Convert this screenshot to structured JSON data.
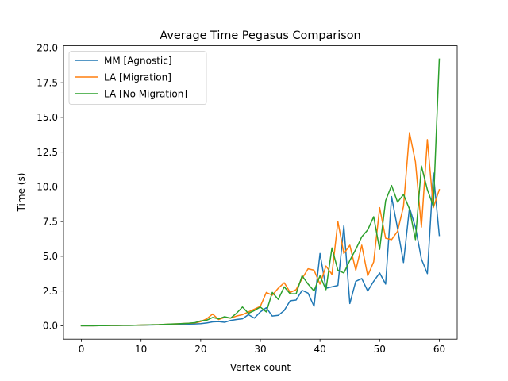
{
  "chart_data": {
    "type": "line",
    "title": "Average Time Pegasus Comparison",
    "xlabel": "Vertex count",
    "ylabel": "Time (s)",
    "xlim": [
      -3,
      63
    ],
    "ylim": [
      -0.96,
      20.16
    ],
    "xticks": [
      0,
      10,
      20,
      30,
      40,
      50,
      60
    ],
    "yticks": [
      0.0,
      2.5,
      5.0,
      7.5,
      10.0,
      12.5,
      15.0,
      17.5,
      20.0
    ],
    "xtick_labels": [
      "0",
      "10",
      "20",
      "30",
      "40",
      "50",
      "60"
    ],
    "ytick_labels": [
      "0.0",
      "2.5",
      "5.0",
      "7.5",
      "10.0",
      "12.5",
      "15.0",
      "17.5",
      "20.0"
    ],
    "grid": false,
    "legend_position": "upper-left",
    "x": [
      0,
      1,
      2,
      3,
      4,
      5,
      6,
      7,
      8,
      9,
      10,
      11,
      12,
      13,
      14,
      15,
      16,
      17,
      18,
      19,
      20,
      21,
      22,
      23,
      24,
      25,
      26,
      27,
      28,
      29,
      30,
      31,
      32,
      33,
      34,
      35,
      36,
      37,
      38,
      39,
      40,
      41,
      42,
      43,
      44,
      45,
      46,
      47,
      48,
      49,
      50,
      51,
      52,
      53,
      54,
      55,
      56,
      57,
      58,
      59,
      60
    ],
    "series": [
      {
        "name": "MM [Agnostic]",
        "color": "#1f77b4",
        "values": [
          0.0,
          0.0,
          0.0,
          0.01,
          0.01,
          0.02,
          0.02,
          0.03,
          0.03,
          0.04,
          0.04,
          0.05,
          0.06,
          0.07,
          0.08,
          0.09,
          0.1,
          0.11,
          0.12,
          0.13,
          0.15,
          0.2,
          0.28,
          0.3,
          0.25,
          0.38,
          0.45,
          0.5,
          0.8,
          0.55,
          1.0,
          1.3,
          0.7,
          0.75,
          1.1,
          1.8,
          1.85,
          2.55,
          2.35,
          1.4,
          5.2,
          2.7,
          2.8,
          2.9,
          7.2,
          1.6,
          3.2,
          3.4,
          2.5,
          3.2,
          3.8,
          3.0,
          9.3,
          7.0,
          4.55,
          8.5,
          7.1,
          4.8,
          3.75,
          11.0,
          6.5
        ]
      },
      {
        "name": "LA [Migration]",
        "color": "#ff7f0e",
        "values": [
          0.0,
          0.0,
          0.0,
          0.01,
          0.01,
          0.02,
          0.02,
          0.03,
          0.03,
          0.04,
          0.05,
          0.06,
          0.07,
          0.08,
          0.1,
          0.12,
          0.14,
          0.16,
          0.18,
          0.2,
          0.3,
          0.5,
          0.85,
          0.45,
          0.6,
          0.55,
          0.7,
          0.8,
          1.0,
          1.2,
          1.4,
          2.4,
          2.2,
          2.7,
          3.1,
          2.4,
          2.6,
          3.4,
          4.1,
          4.0,
          3.0,
          4.3,
          3.7,
          7.5,
          5.2,
          5.8,
          4.0,
          5.8,
          3.6,
          4.6,
          8.5,
          6.3,
          6.2,
          6.8,
          8.6,
          13.9,
          11.8,
          7.1,
          13.4,
          8.5,
          9.8
        ]
      },
      {
        "name": "LA [No Migration]",
        "color": "#2ca02c",
        "values": [
          0.0,
          0.0,
          0.0,
          0.01,
          0.01,
          0.02,
          0.02,
          0.03,
          0.03,
          0.04,
          0.05,
          0.06,
          0.07,
          0.08,
          0.1,
          0.12,
          0.14,
          0.16,
          0.18,
          0.22,
          0.35,
          0.4,
          0.6,
          0.5,
          0.65,
          0.55,
          0.9,
          1.35,
          0.9,
          1.1,
          1.35,
          1.0,
          2.4,
          1.9,
          2.8,
          2.3,
          2.3,
          3.6,
          3.0,
          2.5,
          3.6,
          2.6,
          5.6,
          4.0,
          3.8,
          4.7,
          5.5,
          6.4,
          6.9,
          7.85,
          5.5,
          9.0,
          10.1,
          8.9,
          9.45,
          8.4,
          6.2,
          11.5,
          9.8,
          8.6,
          19.2
        ]
      }
    ]
  }
}
